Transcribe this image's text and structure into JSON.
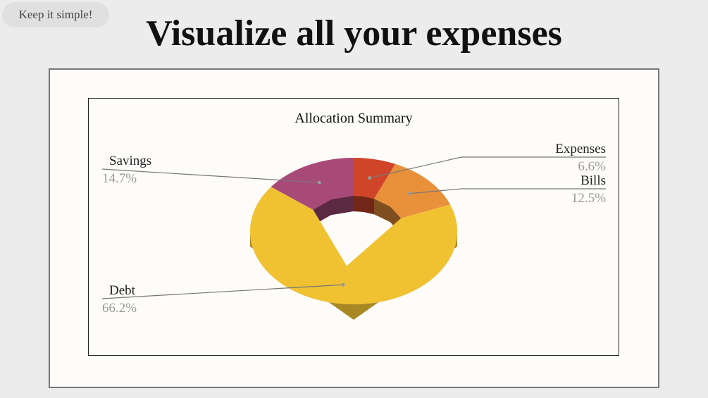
{
  "button": "Keep it simple!",
  "heading": "Visualize all your expenses",
  "chart_data": {
    "type": "donut",
    "title": "Allocation Summary",
    "categories": [
      "Expenses",
      "Bills",
      "Debt",
      "Savings"
    ],
    "values": [
      6.6,
      12.5,
      66.2,
      14.7
    ],
    "value_labels": [
      "6.6%",
      "12.5%",
      "66.2%",
      "14.7%"
    ],
    "colors": [
      "#d0452a",
      "#e8903a",
      "#f0c232",
      "#a84a78"
    ]
  }
}
